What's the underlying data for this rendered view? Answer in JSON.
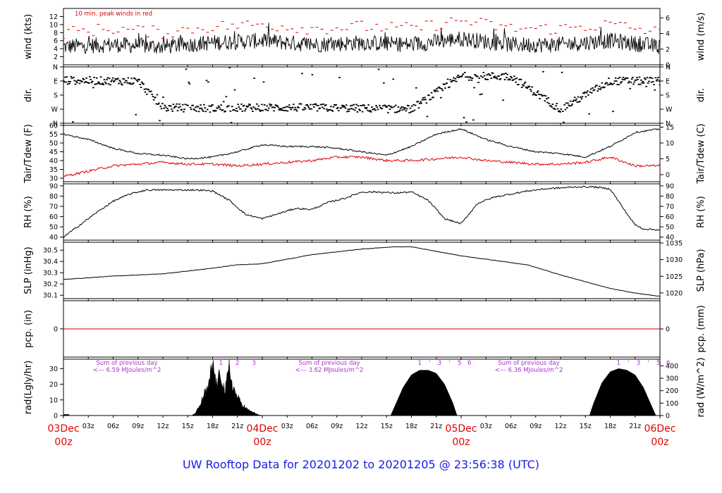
{
  "title": "UW Rooftop Data for 20201202  to  20201205 @ 23:56:38  (UTC)",
  "colors": {
    "line": "#000000",
    "dewpoint": "#e00000",
    "precip": "#cc0000",
    "annotation": "#aa33cc",
    "date": "#e00000",
    "title": "#1a1ae6"
  },
  "x_axis": {
    "hour_ticks": [
      "03z",
      "06z",
      "09z",
      "12z",
      "15z",
      "18z",
      "21z",
      "03z",
      "06z",
      "09z",
      "12z",
      "15z",
      "18z",
      "21z",
      "03z",
      "06z",
      "09z",
      "12z",
      "15z",
      "18z",
      "21z"
    ],
    "day_labels": [
      {
        "date": "03Dec",
        "time": "00z"
      },
      {
        "date": "04Dec",
        "time": "00z"
      },
      {
        "date": "05Dec",
        "time": "00z"
      },
      {
        "date": "06Dec",
        "time": "00z"
      }
    ]
  },
  "panels": {
    "wind": {
      "ylabel_left": "wind (kts)",
      "ylabel_right": "wind (m/s)",
      "left_ticks": [
        "2",
        "4",
        "6",
        "8",
        "10",
        "12"
      ],
      "right_ticks": [
        "0",
        "2",
        "4",
        "6"
      ],
      "note": "10 min. peak winds in red"
    },
    "dir": {
      "ylabel_left": "dir.",
      "ylabel_right": "dir.",
      "ticks": [
        "N",
        "W",
        "S",
        "E",
        "N"
      ]
    },
    "temp": {
      "ylabel_left": "Tair/Tdew (F)",
      "ylabel_right": "Tair/Tdew (C)",
      "left_ticks": [
        "30",
        "35",
        "40",
        "45",
        "50",
        "55",
        "60"
      ],
      "right_ticks": [
        "0",
        "5",
        "10",
        "15"
      ]
    },
    "rh": {
      "ylabel_left": "RH (%)",
      "ylabel_right": "RH (%)",
      "ticks": [
        "40",
        "50",
        "60",
        "70",
        "80",
        "90"
      ]
    },
    "slp": {
      "ylabel_left": "SLP (inHg)",
      "ylabel_right": "SLP (hPa)",
      "left_ticks": [
        "30.1",
        "30.2",
        "30.3",
        "30.4",
        "30.5"
      ],
      "right_ticks": [
        "1020",
        "1025",
        "1030",
        "1035"
      ]
    },
    "pcp": {
      "ylabel_left": "pcp. (in)",
      "ylabel_right": "pcp. (mm)",
      "left_ticks": [
        "0"
      ],
      "right_ticks": [
        "0"
      ]
    },
    "rad": {
      "ylabel_left": "rad(Lgly/hr)",
      "ylabel_right": "rad (W/m^2)",
      "left_ticks": [
        "0",
        "10",
        "20",
        "30"
      ],
      "right_ticks": [
        "0",
        "100",
        "200",
        "300",
        "400"
      ],
      "sums": [
        {
          "line1": "Sum of previous day",
          "line2": "<--- 6.59 MJoules/m^2"
        },
        {
          "line1": "Sum of previous day",
          "line2": "<--- 3.62 MJoules/m^2"
        },
        {
          "line1": "Sum of previous day",
          "line2": "<--- 6.36 MJoules/m^2"
        }
      ],
      "hour_marks": [
        [
          "1",
          "2",
          "3"
        ],
        [
          "1",
          "'",
          "3",
          "'",
          "5",
          "6"
        ],
        [
          "1",
          "'",
          "3",
          "'",
          "5",
          "6"
        ]
      ]
    }
  },
  "chart_data": {
    "type": "line",
    "x_unit": "hours since 03Dec 00z",
    "x_range": [
      0,
      72
    ],
    "panels": [
      {
        "name": "wind",
        "unit": "kts",
        "ylim": [
          0,
          14
        ],
        "series": [
          {
            "name": "wind speed",
            "x": [
              0,
              6,
              12,
              18,
              24,
              30,
              36,
              42,
              48,
              54,
              60,
              66,
              72
            ],
            "values": [
              4.5,
              5,
              4.5,
              5.5,
              6,
              5,
              5.5,
              5,
              6.5,
              5,
              5,
              6,
              4.5
            ]
          },
          {
            "name": "10 min. peak winds",
            "x": [
              0,
              6,
              12,
              18,
              24,
              30,
              36,
              42,
              48,
              54,
              60,
              66,
              72
            ],
            "values": [
              8,
              9,
              8,
              9.5,
              10,
              9,
              9.5,
              9,
              11,
              9,
              9,
              10,
              8
            ]
          }
        ]
      },
      {
        "name": "dir",
        "unit": "compass",
        "ylim": [
          0,
          360
        ],
        "series": [
          {
            "name": "wind direction",
            "x": [
              0,
              6,
              9,
              12,
              18,
              24,
              30,
              36,
              42,
              48,
              54,
              60,
              66,
              72
            ],
            "values": [
              275,
              270,
              270,
              100,
              95,
              100,
              100,
              95,
              90,
              300,
              300,
              90,
              270,
              270
            ]
          }
        ]
      },
      {
        "name": "temp",
        "unit": "F",
        "ylim": [
          28,
          60
        ],
        "series": [
          {
            "name": "Tair",
            "x": [
              0,
              3,
              6,
              9,
              12,
              15,
              18,
              21,
              24,
              27,
              30,
              33,
              36,
              39,
              42,
              45,
              48,
              51,
              54,
              57,
              60,
              63,
              66,
              69,
              72
            ],
            "values": [
              55,
              52,
              47,
              44,
              43,
              41,
              42,
              45,
              49,
              48,
              48,
              47,
              45,
              43,
              48,
              55,
              58,
              52,
              48,
              45,
              44,
              42,
              48,
              56,
              58
            ]
          },
          {
            "name": "Tdew",
            "x": [
              0,
              3,
              6,
              9,
              12,
              15,
              18,
              21,
              24,
              27,
              30,
              33,
              36,
              39,
              42,
              45,
              48,
              51,
              54,
              57,
              60,
              63,
              66,
              69,
              72
            ],
            "values": [
              31,
              34,
              37,
              38,
              39,
              38,
              38,
              37,
              38,
              39,
              40,
              42,
              42,
              40,
              40,
              41,
              42,
              40,
              39,
              38,
              38,
              39,
              42,
              37,
              37
            ]
          }
        ]
      },
      {
        "name": "rh",
        "unit": "%",
        "ylim": [
          37,
          92
        ],
        "series": [
          {
            "name": "RH",
            "x": [
              0,
              2,
              4,
              6,
              8,
              10,
              12,
              14,
              16,
              18,
              20,
              22,
              24,
              26,
              28,
              30,
              32,
              34,
              36,
              38,
              40,
              42,
              44,
              46,
              48,
              50,
              52,
              54,
              56,
              58,
              60,
              62,
              64,
              66,
              68,
              69,
              70,
              72
            ],
            "values": [
              40,
              52,
              64,
              75,
              82,
              86,
              86,
              86,
              86,
              85,
              76,
              62,
              58,
              63,
              68,
              67,
              74,
              78,
              84,
              84,
              83,
              84,
              76,
              58,
              53,
              73,
              79,
              82,
              85,
              87,
              88,
              89,
              89,
              87,
              63,
              52,
              48,
              47
            ]
          }
        ]
      },
      {
        "name": "slp",
        "unit": "inHg",
        "ylim": [
          30.07,
          30.57
        ],
        "series": [
          {
            "name": "SLP",
            "x": [
              0,
              6,
              12,
              18,
              21,
              24,
              30,
              36,
              40,
              42,
              48,
              54,
              56,
              60,
              66,
              69,
              72
            ],
            "values": [
              30.24,
              30.27,
              30.29,
              30.34,
              30.37,
              30.38,
              30.46,
              30.51,
              30.53,
              30.53,
              30.45,
              30.39,
              30.37,
              30.28,
              30.16,
              30.12,
              30.09
            ]
          }
        ]
      },
      {
        "name": "pcp",
        "unit": "in",
        "ylim": [
          -1,
          1
        ],
        "series": [
          {
            "name": "precip",
            "x": [
              0,
              72
            ],
            "values": [
              0,
              0
            ]
          }
        ]
      },
      {
        "name": "rad",
        "unit": "Lgly/hr",
        "ylim": [
          0,
          36
        ],
        "series": [
          {
            "name": "solar radiation",
            "x": [
              0,
              15.5,
              16,
              16.5,
              17,
              17.5,
              18,
              18.5,
              19,
              19.5,
              20,
              20.5,
              21,
              21.5,
              22,
              22.5,
              23,
              23.5,
              24,
              39.5,
              40,
              41,
              42,
              43,
              44,
              45,
              46,
              47,
              47.5,
              63.5,
              64,
              65,
              66,
              67,
              68,
              69,
              70,
              71,
              71.5,
              72
            ],
            "values": [
              0,
              0,
              2,
              7,
              14,
              18,
              34,
              20,
              28,
              15,
              31,
              18,
              12,
              8,
              5,
              3,
              2,
              0.5,
              0,
              0,
              6,
              18,
              26,
              29,
              29,
              27,
              20,
              8,
              0,
              0,
              8,
              21,
              28,
              30,
              29,
              26,
              18,
              6,
              0,
              0
            ]
          }
        ]
      }
    ]
  }
}
